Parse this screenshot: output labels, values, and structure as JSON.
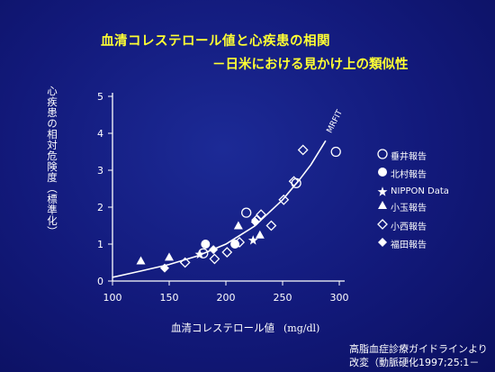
{
  "slide": {
    "title_line1": "血清コレステロール値と心疾患の相関",
    "title_line2": "－日米における見かけ上の類似性",
    "source_line1": "高脂血症診療ガイドラインより",
    "source_line2": "改変（動脈硬化1997;25:1－"
  },
  "colors": {
    "background": "#141c80",
    "title": "#ffff33",
    "text": "#ffffff"
  },
  "chart_data": {
    "type": "scatter",
    "xlabel": "血清コレステロール値",
    "xlabel_unit": "(mg/dl)",
    "ylabel": "心疾患の相対危険度（標準化）",
    "xlim": [
      100,
      300
    ],
    "ylim": [
      0,
      5
    ],
    "xticks": [
      "100",
      "150",
      "200",
      "250",
      "300"
    ],
    "yticks": [
      "0",
      "1",
      "2",
      "3",
      "4",
      "5"
    ],
    "curve_label": "MRFIT",
    "curve": [
      {
        "x": 100,
        "y": 0.1
      },
      {
        "x": 125,
        "y": 0.27
      },
      {
        "x": 150,
        "y": 0.45
      },
      {
        "x": 175,
        "y": 0.68
      },
      {
        "x": 200,
        "y": 1.0
      },
      {
        "x": 225,
        "y": 1.48
      },
      {
        "x": 250,
        "y": 2.2
      },
      {
        "x": 265,
        "y": 2.75
      },
      {
        "x": 275,
        "y": 3.15
      },
      {
        "x": 288,
        "y": 3.8
      }
    ],
    "series": [
      {
        "name": "垂井報告",
        "marker": "circle-open",
        "points": [
          {
            "x": 180,
            "y": 0.75
          },
          {
            "x": 218,
            "y": 1.85
          },
          {
            "x": 262,
            "y": 2.65
          },
          {
            "x": 297,
            "y": 3.5
          }
        ]
      },
      {
        "name": "北村報告",
        "marker": "circle-filled",
        "points": [
          {
            "x": 182,
            "y": 1.0
          },
          {
            "x": 208,
            "y": 1.0
          }
        ]
      },
      {
        "name": "NIPPON Data",
        "marker": "star",
        "points": [
          {
            "x": 177,
            "y": 0.72
          },
          {
            "x": 224,
            "y": 1.1
          }
        ]
      },
      {
        "name": "小玉報告",
        "marker": "triangle",
        "points": [
          {
            "x": 125,
            "y": 0.55
          },
          {
            "x": 150,
            "y": 0.65
          },
          {
            "x": 211,
            "y": 1.5
          },
          {
            "x": 230,
            "y": 1.25
          }
        ]
      },
      {
        "name": "小西報告",
        "marker": "diamond-open",
        "points": [
          {
            "x": 164,
            "y": 0.5
          },
          {
            "x": 190,
            "y": 0.6
          },
          {
            "x": 201,
            "y": 0.78
          },
          {
            "x": 212,
            "y": 1.05
          },
          {
            "x": 227,
            "y": 1.65
          },
          {
            "x": 231,
            "y": 1.8
          },
          {
            "x": 240,
            "y": 1.5
          },
          {
            "x": 251,
            "y": 2.2
          },
          {
            "x": 260,
            "y": 2.7
          },
          {
            "x": 268,
            "y": 3.55
          }
        ]
      },
      {
        "name": "福田報告",
        "marker": "diamond-filled",
        "points": [
          {
            "x": 146,
            "y": 0.35
          },
          {
            "x": 189,
            "y": 0.85
          },
          {
            "x": 226,
            "y": 1.6
          }
        ]
      }
    ]
  }
}
